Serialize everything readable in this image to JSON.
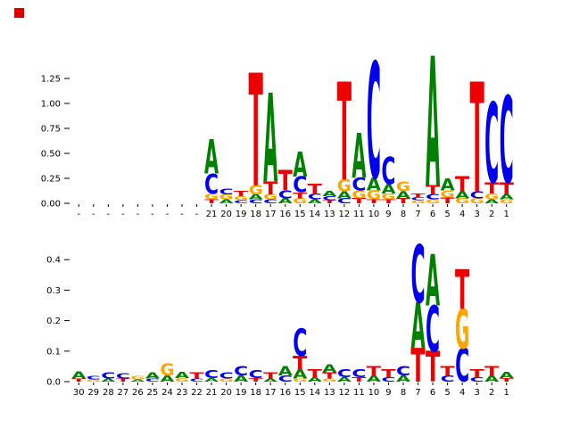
{
  "figure": {
    "background": "#ffffff",
    "marker_color": "#dd0000"
  },
  "colors": {
    "A": "#008000",
    "C": "#0000ee",
    "G": "#ffa500",
    "T": "#ee0000"
  },
  "chart_data": [
    {
      "type": "sequence_logo",
      "name": "top-sequence-logo",
      "title": "",
      "xlabel": "",
      "ylabel": "",
      "ylim": [
        0,
        1.45
      ],
      "grid": false,
      "legend": "none",
      "yticks": [
        "0.00",
        "0.25",
        "0.50",
        "0.75",
        "1.00",
        "1.25"
      ],
      "ytick_values": [
        0,
        0.25,
        0.5,
        0.75,
        1.0,
        1.25
      ],
      "x_tick_labels": [
        "-",
        "-",
        "-",
        "-",
        "-",
        "-",
        "-",
        "-",
        "-",
        "21",
        "20",
        "19",
        "18",
        "17",
        "16",
        "15",
        "14",
        "13",
        "12",
        "11",
        "10",
        "9",
        "8",
        "7",
        "6",
        "5",
        "4",
        "3",
        "2",
        "1"
      ],
      "stacks": [
        [],
        [],
        [],
        [],
        [],
        [],
        [],
        [],
        [],
        [
          [
            "T",
            0.04
          ],
          [
            "G",
            0.06
          ],
          [
            "C",
            0.2
          ],
          [
            "A",
            0.34
          ]
        ],
        [
          [
            "A",
            0.04
          ],
          [
            "G",
            0.05
          ],
          [
            "C",
            0.06
          ]
        ],
        [
          [
            "C",
            0.03
          ],
          [
            "G",
            0.04
          ],
          [
            "T",
            0.05
          ]
        ],
        [
          [
            "C",
            0.04
          ],
          [
            "A",
            0.05
          ],
          [
            "G",
            0.09
          ],
          [
            "T",
            1.13
          ]
        ],
        [
          [
            "C",
            0.04
          ],
          [
            "G",
            0.05
          ],
          [
            "T",
            0.13
          ],
          [
            "A",
            0.89
          ]
        ],
        [
          [
            "A",
            0.05
          ],
          [
            "C",
            0.08
          ],
          [
            "T",
            0.2
          ]
        ],
        [
          [
            "G",
            0.05
          ],
          [
            "T",
            0.06
          ],
          [
            "C",
            0.16
          ],
          [
            "A",
            0.25
          ]
        ],
        [
          [
            "A",
            0.04
          ],
          [
            "C",
            0.06
          ],
          [
            "T",
            0.1
          ]
        ],
        [
          [
            "T",
            0.03
          ],
          [
            "C",
            0.04
          ],
          [
            "A",
            0.05
          ]
        ],
        [
          [
            "C",
            0.05
          ],
          [
            "A",
            0.07
          ],
          [
            "G",
            0.12
          ],
          [
            "T",
            0.98
          ]
        ],
        [
          [
            "T",
            0.05
          ],
          [
            "G",
            0.08
          ],
          [
            "C",
            0.13
          ],
          [
            "A",
            0.45
          ]
        ],
        [
          [
            "T",
            0.04
          ],
          [
            "G",
            0.09
          ],
          [
            "A",
            0.13
          ],
          [
            "C",
            1.16
          ]
        ],
        [
          [
            "T",
            0.04
          ],
          [
            "G",
            0.06
          ],
          [
            "A",
            0.09
          ],
          [
            "C",
            0.27
          ]
        ],
        [
          [
            "T",
            0.05
          ],
          [
            "A",
            0.07
          ],
          [
            "G",
            0.1
          ]
        ],
        [
          [
            "G",
            0.03
          ],
          [
            "C",
            0.03
          ],
          [
            "T",
            0.04
          ]
        ],
        [
          [
            "G",
            0.04
          ],
          [
            "C",
            0.05
          ],
          [
            "T",
            0.09
          ],
          [
            "A",
            1.3
          ]
        ],
        [
          [
            "T",
            0.06
          ],
          [
            "G",
            0.07
          ],
          [
            "A",
            0.12
          ]
        ],
        [
          [
            "G",
            0.05
          ],
          [
            "A",
            0.07
          ],
          [
            "T",
            0.15
          ]
        ],
        [
          [
            "G",
            0.05
          ],
          [
            "C",
            0.07
          ],
          [
            "T",
            1.1
          ]
        ],
        [
          [
            "A",
            0.04
          ],
          [
            "G",
            0.06
          ],
          [
            "T",
            0.11
          ],
          [
            "C",
            0.8
          ]
        ],
        [
          [
            "G",
            0.04
          ],
          [
            "A",
            0.05
          ],
          [
            "T",
            0.12
          ],
          [
            "C",
            0.87
          ]
        ]
      ]
    },
    {
      "type": "sequence_logo",
      "name": "bottom-sequence-logo",
      "title": "",
      "xlabel": "",
      "ylabel": "",
      "ylim": [
        0,
        0.47
      ],
      "grid": false,
      "legend": "none",
      "yticks": [
        "0.0",
        "0.1",
        "0.2",
        "0.3",
        "0.4"
      ],
      "ytick_values": [
        0,
        0.1,
        0.2,
        0.3,
        0.4
      ],
      "x_tick_labels": [
        "30",
        "29",
        "28",
        "27",
        "26",
        "25",
        "24",
        "23",
        "22",
        "21",
        "20",
        "19",
        "18",
        "17",
        "16",
        "15",
        "14",
        "13",
        "12",
        "11",
        "10",
        "9",
        "8",
        "7",
        "6",
        "5",
        "4",
        "3",
        "2",
        "1"
      ],
      "stacks": [
        [
          [
            "T",
            0.01
          ],
          [
            "A",
            0.022
          ]
        ],
        [
          [
            "G",
            0.008
          ],
          [
            "C",
            0.012
          ]
        ],
        [
          [
            "A",
            0.01
          ],
          [
            "C",
            0.02
          ]
        ],
        [
          [
            "T",
            0.01
          ],
          [
            "C",
            0.016
          ]
        ],
        [
          [
            "A",
            0.008
          ],
          [
            "G",
            0.012
          ]
        ],
        [
          [
            "C",
            0.01
          ],
          [
            "A",
            0.02
          ]
        ],
        [
          [
            "A",
            0.02
          ],
          [
            "G",
            0.04
          ]
        ],
        [
          [
            "G",
            0.012
          ],
          [
            "A",
            0.02
          ]
        ],
        [
          [
            "C",
            0.01
          ],
          [
            "T",
            0.02
          ]
        ],
        [
          [
            "A",
            0.012
          ],
          [
            "C",
            0.026
          ]
        ],
        [
          [
            "G",
            0.01
          ],
          [
            "C",
            0.02
          ]
        ],
        [
          [
            "A",
            0.02
          ],
          [
            "C",
            0.03
          ]
        ],
        [
          [
            "T",
            0.012
          ],
          [
            "C",
            0.026
          ]
        ],
        [
          [
            "A",
            0.01
          ],
          [
            "T",
            0.02
          ]
        ],
        [
          [
            "C",
            0.02
          ],
          [
            "A",
            0.03
          ]
        ],
        [
          [
            "G",
            0.01
          ],
          [
            "A",
            0.03
          ],
          [
            "T",
            0.045
          ],
          [
            "C",
            0.09
          ]
        ],
        [
          [
            "A",
            0.015
          ],
          [
            "T",
            0.026
          ]
        ],
        [
          [
            "G",
            0.01
          ],
          [
            "T",
            0.02
          ],
          [
            "A",
            0.026
          ]
        ],
        [
          [
            "A",
            0.015
          ],
          [
            "C",
            0.026
          ]
        ],
        [
          [
            "T",
            0.015
          ],
          [
            "C",
            0.026
          ]
        ],
        [
          [
            "A",
            0.02
          ],
          [
            "T",
            0.03
          ]
        ],
        [
          [
            "C",
            0.015
          ],
          [
            "T",
            0.026
          ]
        ],
        [
          [
            "A",
            0.02
          ],
          [
            "C",
            0.03
          ]
        ],
        [
          [
            "T",
            0.11
          ],
          [
            "A",
            0.15
          ],
          [
            "C",
            0.19
          ]
        ],
        [
          [
            "T",
            0.1
          ],
          [
            "C",
            0.15
          ],
          [
            "A",
            0.17
          ]
        ],
        [
          [
            "C",
            0.02
          ],
          [
            "T",
            0.03
          ]
        ],
        [
          [
            "C",
            0.11
          ],
          [
            "G",
            0.13
          ],
          [
            "T",
            0.13
          ]
        ],
        [
          [
            "C",
            0.015
          ],
          [
            "T",
            0.026
          ]
        ],
        [
          [
            "A",
            0.02
          ],
          [
            "T",
            0.03
          ]
        ],
        [
          [
            "T",
            0.012
          ],
          [
            "A",
            0.02
          ]
        ]
      ]
    }
  ]
}
